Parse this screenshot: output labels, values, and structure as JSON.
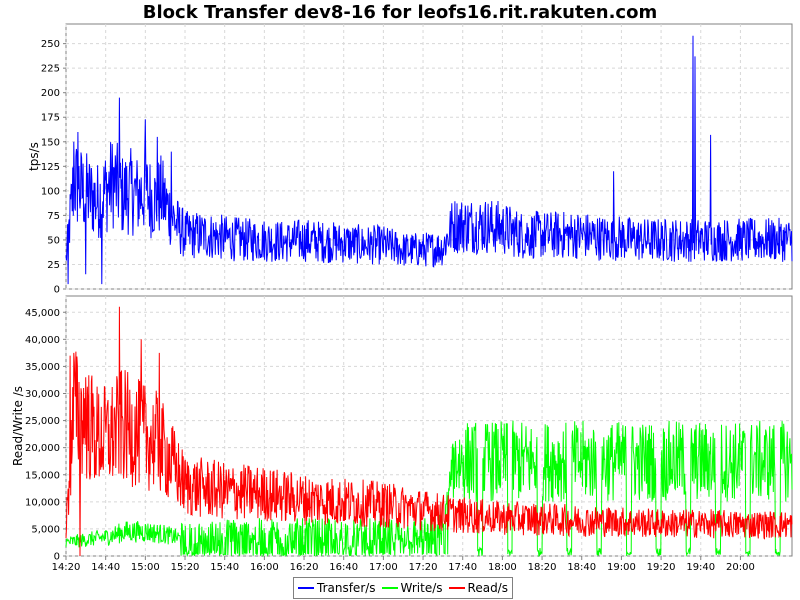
{
  "chart_data": [
    {
      "type": "line",
      "title": "Block Transfer dev8-16 for leofs16.rit.rakuten.com",
      "ylabel": "tps/s",
      "ylim": [
        0,
        270
      ],
      "yticks": [
        0,
        25,
        50,
        75,
        100,
        125,
        150,
        175,
        200,
        225,
        250
      ],
      "grid": true,
      "series": [
        {
          "name": "Transfer/s",
          "color": "#0000ff",
          "points": [
            [
              "14:20",
              30
            ],
            [
              "14:24",
              110
            ],
            [
              "14:28",
              100
            ],
            [
              "14:32",
              95
            ],
            [
              "14:36",
              90
            ],
            [
              "14:40",
              100
            ],
            [
              "14:44",
              110
            ],
            [
              "14:48",
              95
            ],
            [
              "14:52",
              100
            ],
            [
              "14:56",
              95
            ],
            [
              "15:00",
              100
            ],
            [
              "15:04",
              90
            ],
            [
              "15:08",
              95
            ],
            [
              "15:12",
              80
            ],
            [
              "15:16",
              65
            ],
            [
              "15:20",
              55
            ],
            [
              "15:30",
              55
            ],
            [
              "15:40",
              52
            ],
            [
              "15:50",
              50
            ],
            [
              "16:00",
              50
            ],
            [
              "16:10",
              48
            ],
            [
              "16:20",
              50
            ],
            [
              "16:30",
              48
            ],
            [
              "16:40",
              47
            ],
            [
              "16:50",
              45
            ],
            [
              "17:00",
              45
            ],
            [
              "17:10",
              40
            ],
            [
              "17:20",
              40
            ],
            [
              "17:30",
              42
            ],
            [
              "17:35",
              65
            ],
            [
              "17:40",
              65
            ],
            [
              "17:50",
              65
            ],
            [
              "18:00",
              62
            ],
            [
              "18:10",
              55
            ],
            [
              "18:20",
              55
            ],
            [
              "18:30",
              55
            ],
            [
              "18:40",
              55
            ],
            [
              "18:50",
              52
            ],
            [
              "19:00",
              52
            ],
            [
              "19:10",
              50
            ],
            [
              "19:20",
              50
            ],
            [
              "19:30",
              50
            ],
            [
              "19:40",
              50
            ],
            [
              "19:50",
              50
            ],
            [
              "20:00",
              50
            ],
            [
              "20:10",
              50
            ],
            [
              "20:20",
              50
            ],
            [
              "20:26",
              50
            ]
          ],
          "spikes": [
            [
              "14:21",
              5
            ],
            [
              "14:24",
              150
            ],
            [
              "14:26",
              160
            ],
            [
              "14:30",
              15
            ],
            [
              "14:38",
              5
            ],
            [
              "14:47",
              195
            ],
            [
              "15:00",
              173
            ],
            [
              "15:06",
              155
            ],
            [
              "15:13",
              140
            ],
            [
              "18:56",
              120
            ],
            [
              "19:36",
              258
            ],
            [
              "19:37",
              237
            ],
            [
              "19:45",
              157
            ]
          ]
        }
      ]
    },
    {
      "type": "line",
      "ylabel": "Read/Write /s",
      "ylim": [
        0,
        48000
      ],
      "yticks": [
        0,
        5000,
        10000,
        15000,
        20000,
        25000,
        30000,
        35000,
        40000,
        45000
      ],
      "ytick_labels": [
        "0",
        "5,000",
        "10,000",
        "15,000",
        "20,000",
        "25,000",
        "30,000",
        "35,000",
        "40,000",
        "45,000"
      ],
      "xticks": [
        "14:20",
        "14:40",
        "15:00",
        "15:20",
        "15:40",
        "16:00",
        "16:20",
        "16:40",
        "17:00",
        "17:20",
        "17:40",
        "18:00",
        "18:20",
        "18:40",
        "19:00",
        "19:20",
        "19:40",
        "20:00"
      ],
      "xlim": [
        "14:20",
        "20:26"
      ],
      "grid": true,
      "series": [
        {
          "name": "Write/s",
          "color": "#00ff00",
          "points": [
            [
              "14:20",
              2500
            ],
            [
              "14:30",
              3000
            ],
            [
              "14:40",
              3500
            ],
            [
              "14:50",
              4500
            ],
            [
              "15:00",
              4500
            ],
            [
              "15:10",
              4000
            ],
            [
              "15:20",
              3000
            ],
            [
              "15:40",
              4000
            ],
            [
              "16:00",
              4000
            ],
            [
              "16:20",
              4000
            ],
            [
              "16:40",
              4000
            ],
            [
              "17:00",
              4000
            ],
            [
              "17:20",
              4000
            ],
            [
              "17:30",
              5000
            ],
            [
              "17:35",
              18000
            ],
            [
              "17:40",
              18000
            ],
            [
              "18:00",
              18000
            ],
            [
              "18:20",
              18000
            ],
            [
              "18:40",
              18000
            ],
            [
              "19:00",
              18000
            ],
            [
              "19:20",
              18000
            ],
            [
              "19:40",
              18000
            ],
            [
              "20:00",
              18000
            ],
            [
              "20:20",
              18000
            ],
            [
              "20:26",
              18000
            ]
          ]
        },
        {
          "name": "Read/s",
          "color": "#ff0000",
          "points": [
            [
              "14:20",
              5000
            ],
            [
              "14:24",
              27000
            ],
            [
              "14:30",
              25000
            ],
            [
              "14:36",
              22000
            ],
            [
              "14:42",
              22000
            ],
            [
              "14:48",
              24000
            ],
            [
              "14:54",
              23000
            ],
            [
              "15:00",
              22000
            ],
            [
              "15:06",
              21000
            ],
            [
              "15:12",
              18000
            ],
            [
              "15:20",
              13000
            ],
            [
              "15:40",
              12000
            ],
            [
              "16:00",
              11500
            ],
            [
              "16:20",
              10500
            ],
            [
              "16:40",
              10000
            ],
            [
              "17:00",
              9500
            ],
            [
              "17:20",
              8500
            ],
            [
              "17:30",
              8000
            ],
            [
              "17:40",
              7500
            ],
            [
              "18:00",
              7000
            ],
            [
              "18:20",
              6800
            ],
            [
              "18:40",
              6500
            ],
            [
              "19:00",
              6300
            ],
            [
              "19:20",
              6000
            ],
            [
              "19:40",
              6000
            ],
            [
              "20:00",
              5800
            ],
            [
              "20:20",
              5800
            ],
            [
              "20:26",
              5800
            ]
          ],
          "spikes": [
            [
              "14:22",
              37000
            ],
            [
              "14:24",
              37500
            ],
            [
              "14:30",
              33000
            ],
            [
              "14:47",
              46000
            ],
            [
              "14:58",
              40000
            ],
            [
              "15:07",
              37500
            ],
            [
              "14:27",
              0
            ]
          ]
        }
      ]
    }
  ],
  "legend": {
    "items": [
      {
        "label": "Transfer/s",
        "color": "#0000ff"
      },
      {
        "label": "Write/s",
        "color": "#00ff00"
      },
      {
        "label": "Read/s",
        "color": "#ff0000"
      }
    ]
  }
}
